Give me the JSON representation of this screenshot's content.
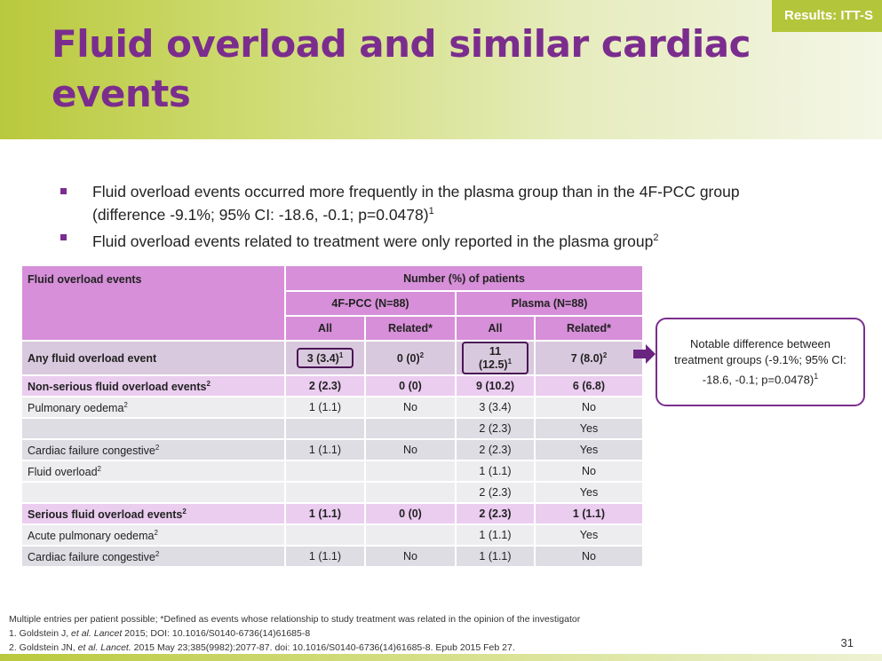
{
  "header": {
    "title": "Fluid overload and similar cardiac events",
    "tag": "Results: ITT-S"
  },
  "bullets": [
    {
      "text": "Fluid overload events occurred more frequently in the plasma group than in the 4F-PCC group (difference -9.1%; 95% CI: -18.6, -0.1; p=0.0478)",
      "sup": "1"
    },
    {
      "text": "Fluid overload events related to treatment were only reported in the plasma group",
      "sup": "2"
    }
  ],
  "table": {
    "col_header": "Fluid overload events",
    "group_header": "Number (%) of patients",
    "groups": [
      "4F-PCC (N=88)",
      "Plasma (N=88)"
    ],
    "subheaders": [
      "All",
      "Related*",
      "All",
      "Related*"
    ],
    "rows": [
      {
        "label": "Any fluid overload event",
        "label_sup": "",
        "cells": [
          {
            "text": "3 (3.4)",
            "sup": "1"
          },
          {
            "text": "0 (0)",
            "sup": "2"
          },
          {
            "text": "11 (12.5)",
            "sup": "1"
          },
          {
            "text": "7 (8.0)",
            "sup": "2"
          }
        ]
      },
      {
        "label": "Non-serious fluid overload events",
        "label_sup": "2",
        "cells": [
          {
            "text": "2 (2.3)",
            "sup": ""
          },
          {
            "text": "0 (0)",
            "sup": ""
          },
          {
            "text": "9 (10.2)",
            "sup": ""
          },
          {
            "text": "6 (6.8)",
            "sup": ""
          }
        ]
      },
      {
        "label": "Pulmonary oedema",
        "label_sup": "2",
        "cells": [
          {
            "text": "1 (1.1)",
            "sup": ""
          },
          {
            "text": "No",
            "sup": ""
          },
          {
            "text": "3 (3.4)",
            "sup": ""
          },
          {
            "text": "No",
            "sup": ""
          }
        ]
      },
      {
        "label": "",
        "label_sup": "",
        "cells": [
          {
            "text": "",
            "sup": ""
          },
          {
            "text": "",
            "sup": ""
          },
          {
            "text": "2 (2.3)",
            "sup": ""
          },
          {
            "text": "Yes",
            "sup": ""
          }
        ]
      },
      {
        "label": "Cardiac failure congestive",
        "label_sup": "2",
        "cells": [
          {
            "text": "1 (1.1)",
            "sup": ""
          },
          {
            "text": "No",
            "sup": ""
          },
          {
            "text": "2 (2.3)",
            "sup": ""
          },
          {
            "text": "Yes",
            "sup": ""
          }
        ]
      },
      {
        "label": "Fluid overload",
        "label_sup": "2",
        "cells": [
          {
            "text": "",
            "sup": ""
          },
          {
            "text": "",
            "sup": ""
          },
          {
            "text": "1 (1.1)",
            "sup": ""
          },
          {
            "text": "No",
            "sup": ""
          }
        ]
      },
      {
        "label": "",
        "label_sup": "",
        "cells": [
          {
            "text": "",
            "sup": ""
          },
          {
            "text": "",
            "sup": ""
          },
          {
            "text": "2 (2.3)",
            "sup": ""
          },
          {
            "text": "Yes",
            "sup": ""
          }
        ]
      },
      {
        "label": "Serious fluid overload events",
        "label_sup": "2",
        "cells": [
          {
            "text": "1 (1.1)",
            "sup": ""
          },
          {
            "text": "0 (0)",
            "sup": ""
          },
          {
            "text": "2 (2.3)",
            "sup": ""
          },
          {
            "text": "1 (1.1)",
            "sup": ""
          }
        ]
      },
      {
        "label": "Acute pulmonary oedema",
        "label_sup": "2",
        "cells": [
          {
            "text": "",
            "sup": ""
          },
          {
            "text": "",
            "sup": ""
          },
          {
            "text": "1 (1.1)",
            "sup": ""
          },
          {
            "text": "Yes",
            "sup": ""
          }
        ]
      },
      {
        "label": "Cardiac failure congestive",
        "label_sup": "2",
        "cells": [
          {
            "text": "1 (1.1)",
            "sup": ""
          },
          {
            "text": "No",
            "sup": ""
          },
          {
            "text": "1 (1.1)",
            "sup": ""
          },
          {
            "text": "No",
            "sup": ""
          }
        ]
      }
    ]
  },
  "note": {
    "text": "Notable difference between treatment groups (-9.1%; 95% CI: -18.6, -0.1; p=0.0478)",
    "sup": "1"
  },
  "footnotes": {
    "line1": "Multiple entries per patient possible; *Defined as events whose relationship to study treatment  was related in the opinion of the investigator",
    "line2_a": "1. Goldstein J, ",
    "line2_em": "et al. Lancet",
    "line2_b": " 2015; DOI: 10.1016/S0140-6736(14)61685-8",
    "line3_a": "2. Goldstein JN, ",
    "line3_em": "et al. Lancet.",
    "line3_b": " 2015 May 23;385(9982):2077-87. doi: 10.1016/S0140-6736(14)61685-8. Epub 2015 Feb 27."
  },
  "page_number": "31",
  "colors": {
    "title": "#7b2d8e",
    "header_green": "#b9c93d",
    "table_header": "#d68fd8",
    "highlight_border": "#4a1654"
  }
}
